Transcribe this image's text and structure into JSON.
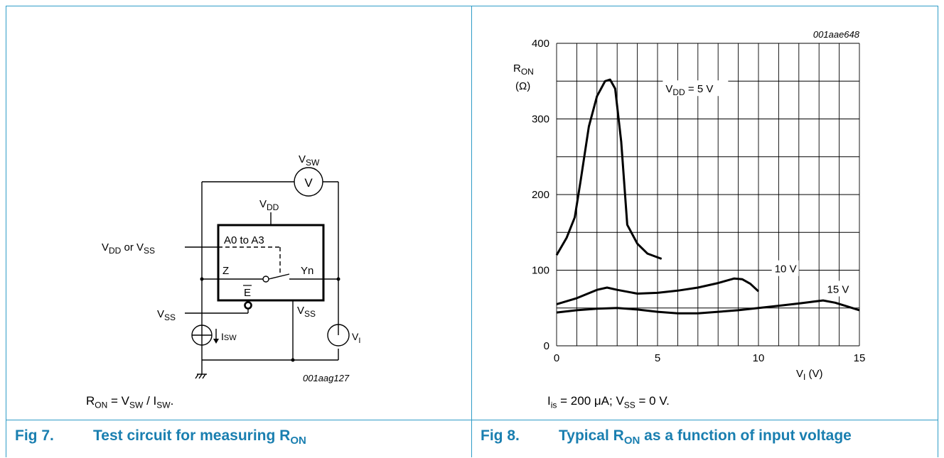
{
  "fig7": {
    "number": "Fig 7.",
    "title": "Test circuit for measuring R",
    "title_sub": "ON",
    "note": {
      "a": "R",
      "a_sub": "ON",
      "b": " = V",
      "b_sub": "SW",
      "c": " / I",
      "c_sub": "SW",
      "d": "."
    },
    "circuit": {
      "meter_label": "V",
      "vsw": "V",
      "vsw_sub": "SW",
      "vdd": "V",
      "vdd_sub": "DD",
      "vdd_or_vss": {
        "a": "V",
        "a_sub": "DD",
        "b": " or V",
        "b_sub": "SS"
      },
      "address": "A0 to A3",
      "z": "Z",
      "yn": "Yn",
      "enable": "E",
      "vss_left": "V",
      "vss_left_sub": "SS",
      "vss_chip": "V",
      "vss_chip_sub": "SS",
      "isw": "I",
      "isw_sub": "SW",
      "vi": "V",
      "vi_sub": "I",
      "code": "001aag127"
    }
  },
  "fig8": {
    "number": "Fig 8.",
    "title_a": "Typical R",
    "title_sub": "ON",
    "title_b": " as a function of input voltage",
    "note": {
      "a": "I",
      "a_sub": "is",
      "b": " = 200 μA; V",
      "b_sub": "SS",
      "c": " = 0 V."
    }
  },
  "chart_data": {
    "type": "line",
    "code": "001aae648",
    "ylabel": "R",
    "ylabel_sub": "ON",
    "ylabel_unit": "(Ω)",
    "xlabel": "V",
    "xlabel_sub": "I",
    "xlabel_unit": " (V)",
    "xlim": [
      0,
      15
    ],
    "ylim": [
      0,
      400
    ],
    "x_ticks": [
      0,
      5,
      10,
      15
    ],
    "y_ticks": [
      0,
      100,
      200,
      300,
      400
    ],
    "grid": true,
    "grid_x_step": 1,
    "grid_y_step": 50,
    "series": [
      {
        "name": "V",
        "name_sub": "DD",
        "name_suffix": " = 5 V",
        "x": [
          0,
          0.5,
          0.9,
          1.2,
          1.6,
          2.0,
          2.4,
          2.65,
          2.9,
          3.2,
          3.5,
          4.0,
          4.5,
          5.2
        ],
        "y": [
          120,
          143,
          170,
          220,
          290,
          330,
          350,
          352,
          340,
          270,
          160,
          135,
          122,
          115
        ]
      },
      {
        "name": "10 V",
        "x": [
          0,
          1,
          2,
          2.5,
          3,
          4,
          5,
          6,
          7,
          8,
          8.8,
          9.2,
          9.6,
          10
        ],
        "y": [
          55,
          63,
          74,
          77,
          74,
          69,
          70,
          73,
          77,
          83,
          89,
          88,
          82,
          72
        ]
      },
      {
        "name": "15 V",
        "x": [
          0,
          1,
          2,
          3,
          4,
          5,
          6,
          7,
          8,
          9,
          10,
          11,
          12,
          12.6,
          13.2,
          13.8,
          14.4,
          15
        ],
        "y": [
          44,
          47,
          49,
          50,
          48,
          45,
          43,
          43,
          45,
          47,
          50,
          53,
          56,
          58,
          60,
          57,
          52,
          47
        ]
      }
    ]
  }
}
